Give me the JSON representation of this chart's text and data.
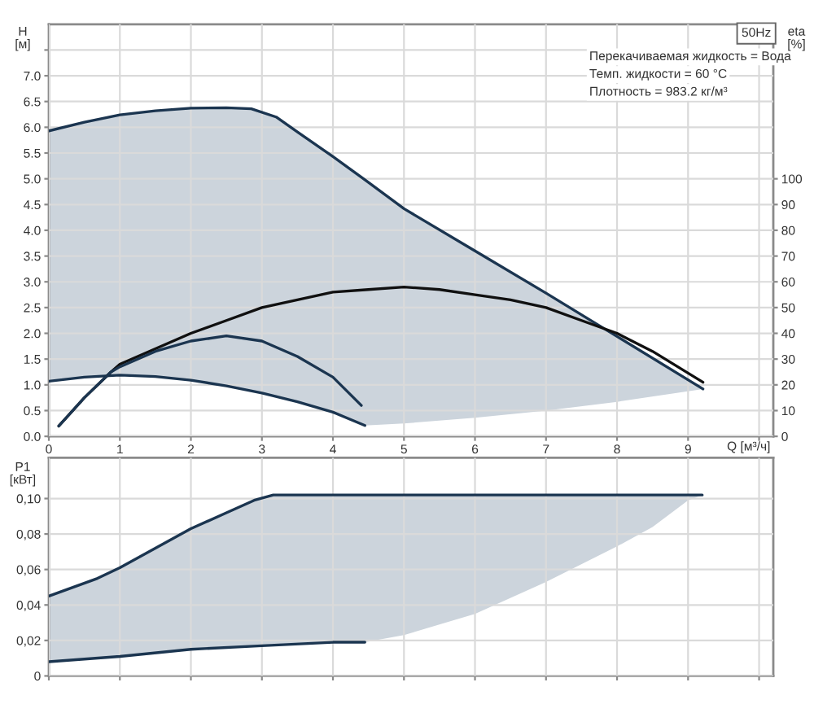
{
  "chart_data": [
    {
      "type": "line",
      "grid": true,
      "xlabel": "Q [м³/ч]",
      "ylabel": "H\n[м]",
      "y2label": "eta\n[%]",
      "xlim": [
        0,
        10.2
      ],
      "xticks": [
        0,
        1,
        2,
        3,
        4,
        5,
        6,
        7,
        8,
        9,
        {
          "value": 10,
          "label": null
        }
      ],
      "ylim": [
        0,
        8
      ],
      "yticks": [
        {
          "value": 0,
          "label": "0.0"
        },
        0.5,
        {
          "value": 1,
          "label": "1.0"
        },
        1.5,
        {
          "value": 2,
          "label": "2.0"
        },
        2.5,
        {
          "value": 3,
          "label": "3.0"
        },
        3.5,
        {
          "value": 4,
          "label": "4.0"
        },
        4.5,
        {
          "value": 5,
          "label": "5.0"
        },
        5.5,
        {
          "value": 6,
          "label": "6.0"
        },
        6.5,
        {
          "value": 7,
          "label": "7.0"
        },
        {
          "value": 7.5,
          "label": null
        }
      ],
      "y2lim": [
        0,
        160
      ],
      "y2ticks": [
        0,
        10,
        20,
        30,
        40,
        50,
        60,
        70,
        80,
        90,
        100
      ],
      "annotations": [
        "50Hz",
        "Перекачиваемая жидкость = Вода",
        "Темп. жидкости = 60 °C",
        "Плотность = 983.2 кг/м³"
      ],
      "series": [
        {
          "color": "#1b3550",
          "x": [
            0,
            0.5,
            1,
            1.5,
            2,
            2.5,
            2.85,
            3.2,
            3.5,
            4,
            4.45,
            5,
            6,
            7,
            8,
            9.21
          ],
          "values": [
            5.93,
            6.1,
            6.24,
            6.32,
            6.37,
            6.38,
            6.36,
            6.2,
            5.91,
            5.43,
            4.98,
            4.42,
            3.6,
            2.78,
            1.94,
            0.92
          ],
          "lower": [
            1.07,
            1.15,
            1.19,
            1.16,
            1.09,
            0.98,
            0.87,
            0.77,
            0.67,
            0.47,
            0.21,
            0.25,
            0.36,
            0.5,
            0.67,
            0.92
          ],
          "upper": [
            5.93,
            6.1,
            6.24,
            6.32,
            6.37,
            6.38,
            6.36,
            6.2,
            5.91,
            5.43,
            4.98,
            4.42,
            3.6,
            2.78,
            1.94,
            0.92
          ]
        },
        {
          "color": "#1b3550",
          "x": [
            0,
            0.5,
            1,
            1.5,
            2,
            2.5,
            3,
            3.5,
            4,
            4.45
          ],
          "values": [
            1.07,
            1.15,
            1.19,
            1.16,
            1.09,
            0.98,
            0.84,
            0.67,
            0.47,
            0.21
          ]
        },
        {
          "axis": "y2",
          "color": "#101010",
          "x": [
            0.14,
            0.5,
            0.875,
            1,
            1.5,
            2,
            2.5,
            3,
            3.5,
            4,
            4.5,
            5,
            5.5,
            6,
            6.5,
            7,
            7.5,
            8,
            8.5,
            9.21
          ],
          "values": [
            4,
            15,
            25,
            28,
            34,
            40,
            45,
            50,
            53,
            56,
            57,
            58,
            57,
            55,
            53,
            50,
            45,
            40,
            33,
            21
          ]
        },
        {
          "axis": "y2",
          "color": "#1b3550",
          "x": [
            0.14,
            0.5,
            0.875,
            1,
            1.5,
            2,
            2.5,
            3,
            3.5,
            4,
            4.4
          ],
          "values": [
            4,
            15,
            25,
            27,
            33,
            37,
            39,
            37,
            31,
            23,
            12
          ]
        }
      ]
    },
    {
      "type": "line",
      "grid": true,
      "tick_labels": "y",
      "ylabel": "P1\n[кВт]",
      "xlim": [
        0,
        10.2
      ],
      "xticks": [
        0,
        1,
        2,
        3,
        4,
        5,
        6,
        7,
        8,
        9,
        10
      ],
      "ylim": [
        0,
        0.123
      ],
      "yticks": [
        0,
        {
          "value": 0.02,
          "label": "0,02"
        },
        {
          "value": 0.04,
          "label": "0,04"
        },
        {
          "value": 0.06,
          "label": "0,06"
        },
        {
          "value": 0.08,
          "label": "0,08"
        },
        {
          "value": 0.1,
          "label": "0,10"
        }
      ],
      "series": [
        {
          "color": "#1b3550",
          "x": [
            0,
            0.685,
            1,
            1.5,
            2,
            2.5,
            2.89,
            3.16,
            4,
            4.45,
            5,
            6,
            7,
            8,
            8.5,
            9,
            9.2
          ],
          "values": [
            0.045,
            0.055,
            0.061,
            0.072,
            0.083,
            0.092,
            0.099,
            0.102,
            0.102,
            0.102,
            0.102,
            0.102,
            0.102,
            0.102,
            0.102,
            0.102,
            0.102
          ],
          "lower": [
            0.008,
            0.01,
            0.011,
            0.013,
            0.015,
            0.016,
            0.017,
            0.018,
            0.019,
            0.019,
            0.023,
            0.035,
            0.053,
            0.073,
            0.084,
            0.099,
            0.102
          ],
          "upper": [
            0.045,
            0.055,
            0.061,
            0.072,
            0.083,
            0.092,
            0.099,
            0.102,
            0.102,
            0.102,
            0.102,
            0.102,
            0.102,
            0.102,
            0.102,
            0.102,
            0.102
          ]
        },
        {
          "color": "#1b3550",
          "x": [
            0,
            1,
            2,
            3,
            4,
            4.45
          ],
          "values": [
            0.008,
            0.011,
            0.015,
            0.017,
            0.019,
            0.019
          ]
        }
      ]
    }
  ]
}
